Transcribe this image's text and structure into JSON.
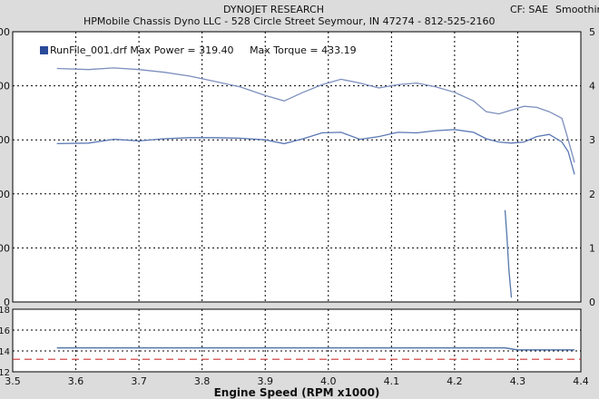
{
  "header": {
    "title": "DYNOJET RESEARCH",
    "subtitle": "HPMobile Chassis Dyno LLC - 528 Circle Street Seymour, IN 47274 - 812-525-2160",
    "cf": "CF: SAE",
    "smoothing": "Smoothin"
  },
  "legend": {
    "run_label": "RunFile_001.drf Max Power = 319.40",
    "torque_label": "Max Torque = 433.19"
  },
  "colors": {
    "power": "#5a78b4",
    "torque": "#7d8fbe",
    "afr": "#5577aa",
    "reference": "#cc3333",
    "grid": "#000000",
    "plot_bg": "#ffffff"
  },
  "chart_data": [
    {
      "type": "line",
      "title": "DYNOJET RESEARCH",
      "xlabel": "Engine Speed (RPM x1000)",
      "xlim": [
        3.5,
        4.4
      ],
      "xticks": [
        3.5,
        3.6,
        3.7,
        3.8,
        3.9,
        4.0,
        4.1,
        4.2,
        4.3,
        4.4
      ],
      "ylim": [
        0,
        500
      ],
      "left_tick_labels": [
        "0",
        "00",
        "00",
        "00",
        "00",
        "00"
      ],
      "right_tick_labels": [
        "0",
        "1",
        "2",
        "3",
        "4",
        "5"
      ],
      "grid": true,
      "series": [
        {
          "name": "Max Torque = 433.19",
          "x": [
            3.57,
            3.62,
            3.66,
            3.7,
            3.74,
            3.78,
            3.82,
            3.86,
            3.9,
            3.93,
            3.96,
            3.99,
            4.02,
            4.05,
            4.08,
            4.11,
            4.14,
            4.17,
            4.2,
            4.23,
            4.25,
            4.27,
            4.29,
            4.31,
            4.33,
            4.35,
            4.37,
            4.38,
            4.39
          ],
          "y": [
            432,
            430,
            433,
            430,
            425,
            418,
            408,
            398,
            382,
            372,
            388,
            402,
            412,
            405,
            396,
            402,
            405,
            398,
            388,
            372,
            352,
            348,
            355,
            362,
            360,
            352,
            340,
            300,
            258
          ]
        },
        {
          "name": "Max Power = 319.40",
          "x": [
            3.57,
            3.62,
            3.66,
            3.7,
            3.74,
            3.78,
            3.82,
            3.86,
            3.9,
            3.93,
            3.96,
            3.99,
            4.02,
            4.05,
            4.08,
            4.11,
            4.14,
            4.17,
            4.2,
            4.23,
            4.25,
            4.27,
            4.29,
            4.31,
            4.33,
            4.35,
            4.37,
            4.38,
            4.39
          ],
          "y": [
            293,
            294,
            301,
            298,
            302,
            304,
            304,
            303,
            300,
            293,
            302,
            313,
            314,
            301,
            306,
            314,
            313,
            317,
            319,
            314,
            302,
            296,
            294,
            296,
            306,
            310,
            296,
            278,
            236
          ]
        },
        {
          "name": "",
          "x": [
            4.28,
            4.283,
            4.286,
            4.29
          ],
          "y": [
            170,
            120,
            60,
            8
          ]
        }
      ]
    },
    {
      "type": "line",
      "xlim": [
        3.5,
        4.4
      ],
      "ylim": [
        12,
        18
      ],
      "ytick_labels": [
        "12",
        "14",
        "16",
        "18"
      ],
      "grid": true,
      "series": [
        {
          "name": "",
          "x": [
            3.57,
            3.7,
            3.8,
            3.9,
            4.0,
            4.1,
            4.2,
            4.28,
            4.3,
            4.39
          ],
          "y": [
            14.3,
            14.3,
            14.3,
            14.3,
            14.3,
            14.3,
            14.3,
            14.3,
            14.1,
            14.1
          ]
        },
        {
          "name": "",
          "x": [
            3.5,
            4.4
          ],
          "y": [
            13.2,
            13.2
          ]
        }
      ]
    }
  ]
}
